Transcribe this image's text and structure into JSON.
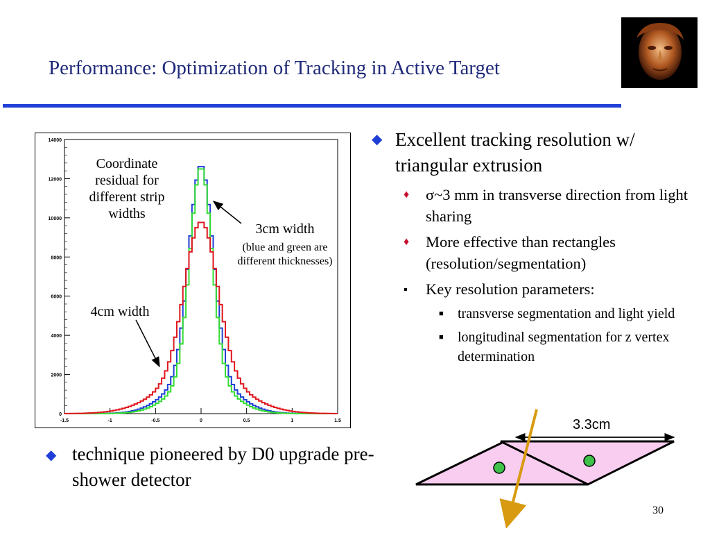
{
  "slide": {
    "title": "Performance: Optimization of Tracking in Active Target",
    "page_number": "30"
  },
  "portrait": {
    "icon": "sculpture-face-icon"
  },
  "colors": {
    "title": "#1f2a7a",
    "accent": "#1f3fd6",
    "red": "#c8102e",
    "green": "#33dd33",
    "blue": "#1f3fd6",
    "prism": "#f8cdf0"
  },
  "right_bullets": {
    "main": "Excellent tracking resolution w/ triangular extrusion",
    "sub1": "σ~3 mm in transverse direction from light sharing",
    "sub2": "More effective than rectangles (resolution/segmentation)",
    "sub3": "Key resolution parameters:",
    "subsub1": "transverse segmentation and light yield",
    "subsub2": "longitudinal segmentation for z vertex determination"
  },
  "left_bullet": "technique pioneered by D0 upgrade pre-shower detector",
  "chart_annotations": {
    "coordinate_label": "Coordinate residual for different strip widths",
    "three_cm": "3cm width",
    "three_cm_note": "(blue and green are different thicknesses)",
    "four_cm": "4cm width"
  },
  "diagram": {
    "width_label": "3.3cm"
  },
  "chart_data": {
    "type": "line",
    "title": "",
    "xlabel": "",
    "ylabel": "",
    "xlim": [
      -1.5,
      1.5
    ],
    "ylim": [
      0,
      14000
    ],
    "x_ticks": [
      "-1.5",
      "-1",
      "-0.5",
      "0",
      "0.5",
      "1",
      "1.5"
    ],
    "y_ticks": [
      "0",
      "2000",
      "4000",
      "6000",
      "8000",
      "10000",
      "12000",
      "14000"
    ],
    "grid": false,
    "series": [
      {
        "color": "#1f3fd6",
        "peak": 12700,
        "sigma": 0.13,
        "tail_amp": 2200,
        "tail_sigma": 0.32
      },
      {
        "color": "#33dd33",
        "peak": 12600,
        "sigma": 0.12,
        "tail_amp": 1900,
        "tail_sigma": 0.3
      },
      {
        "color": "#e0161e",
        "peak": 9800,
        "sigma": 0.18,
        "tail_amp": 2100,
        "tail_sigma": 0.42
      }
    ]
  }
}
